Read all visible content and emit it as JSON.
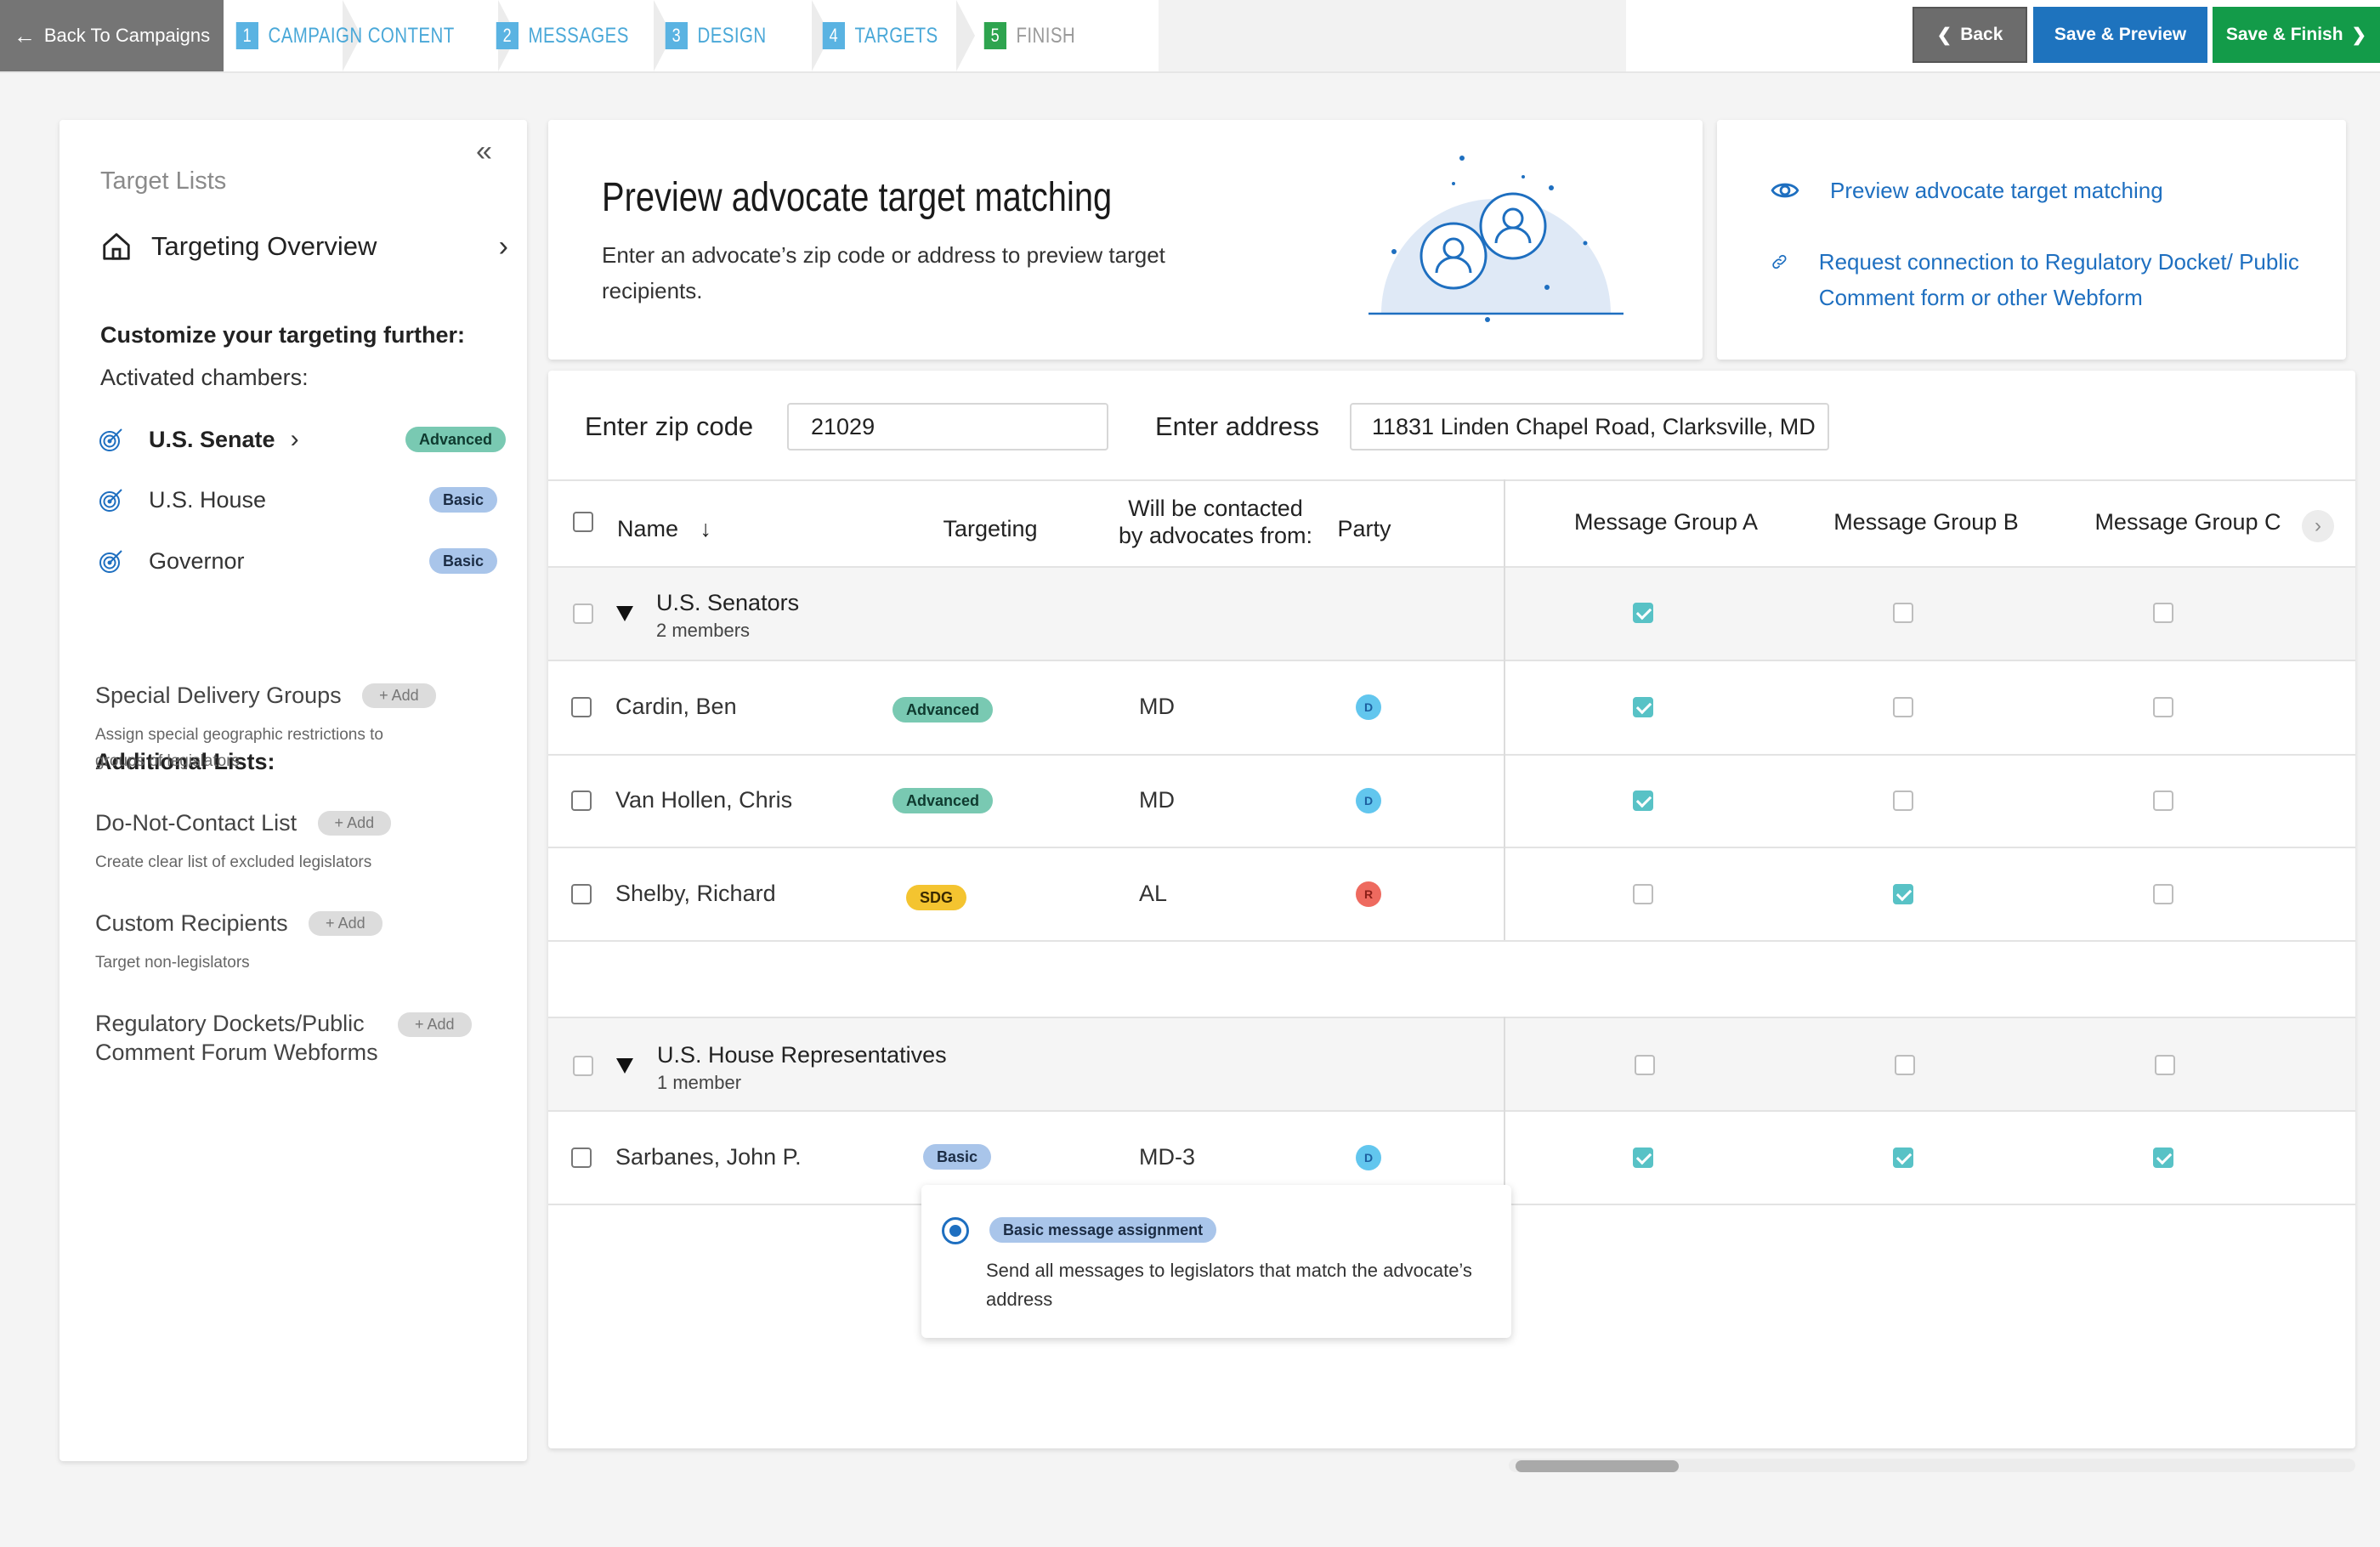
{
  "topbar": {
    "back_to_campaigns": "Back To Campaigns",
    "steps": [
      {
        "num": "1",
        "label": "CAMPAIGN CONTENT"
      },
      {
        "num": "2",
        "label": "MESSAGES"
      },
      {
        "num": "3",
        "label": "DESIGN"
      },
      {
        "num": "4",
        "label": "TARGETS"
      },
      {
        "num": "5",
        "label": "FINISH"
      }
    ],
    "back_label": "Back",
    "save_preview_label": "Save & Preview",
    "save_finish_label": "Save & Finish"
  },
  "sidebar": {
    "title": "Target Lists",
    "overview_label": "Targeting Overview",
    "customize_label": "Customize your targeting further:",
    "activated_label": "Activated chambers:",
    "chambers": [
      {
        "name": "U.S. Senate",
        "badge": "Advanced"
      },
      {
        "name": "U.S. House",
        "badge": "Basic"
      },
      {
        "name": "Governor",
        "badge": "Basic"
      }
    ],
    "additional_label": "Additional Lists:",
    "add_label": "+ Add",
    "additional_lists": [
      {
        "title": "Special Delivery Groups",
        "desc": "Assign special geographic restrictions to groups of legislators"
      },
      {
        "title": "Do-Not-Contact List",
        "desc": "Create clear list of excluded legislators"
      },
      {
        "title": "Custom Recipients",
        "desc": "Target non-legislators"
      },
      {
        "title": "Regulatory Dockets/Public Comment Forum Webforms",
        "desc": ""
      }
    ]
  },
  "preview": {
    "title": "Preview advocate target matching",
    "description": "Enter an advocate’s zip code or address to preview target recipients."
  },
  "links": {
    "preview_link": "Preview advocate target matching",
    "request_link": "Request connection to Regulatory Docket/ Public Comment form or other Webform"
  },
  "search": {
    "zip_label": "Enter zip code",
    "zip_value": "21029",
    "address_label": "Enter address",
    "address_value": "11831 Linden Chapel Road, Clarksville, MD"
  },
  "table": {
    "headers": {
      "name": "Name",
      "targeting": "Targeting",
      "contacted_line1": "Will be contacted",
      "contacted_line2": "by advocates from:",
      "party": "Party",
      "group_a": "Message Group A",
      "group_b": "Message Group B",
      "group_c": "Message Group C"
    },
    "groups": [
      {
        "title": "U.S. Senators",
        "subtitle": "2 members",
        "msg": [
          true,
          false,
          false
        ]
      },
      {
        "title": "U.S. House Representatives",
        "subtitle": "1 member",
        "msg": [
          false,
          false,
          false
        ]
      }
    ],
    "rows": [
      {
        "name": "Cardin, Ben",
        "targeting": "Advanced",
        "from": "MD",
        "party": "D",
        "msg": [
          true,
          false,
          false
        ]
      },
      {
        "name": "Van Hollen, Chris",
        "targeting": "Advanced",
        "from": "MD",
        "party": "D",
        "msg": [
          true,
          false,
          false
        ]
      },
      {
        "name": "Shelby, Richard",
        "targeting": "SDG",
        "from": "AL",
        "party": "R",
        "msg": [
          false,
          true,
          false
        ]
      },
      {
        "name": "Sarbanes, John P.",
        "targeting": "Basic",
        "from": "MD-3",
        "party": "D",
        "msg": [
          true,
          true,
          true
        ]
      }
    ]
  },
  "tooltip": {
    "badge": "Basic message assignment",
    "description": "Send all messages to legislators that match the advocate’s address"
  },
  "colors": {
    "primary_blue": "#1e73be",
    "success_green": "#139b49",
    "advanced_badge": "#79c9b2",
    "basic_badge": "#a9c5ea",
    "sdg_badge": "#f4c430",
    "checkbox_checked": "#58c2c6"
  }
}
